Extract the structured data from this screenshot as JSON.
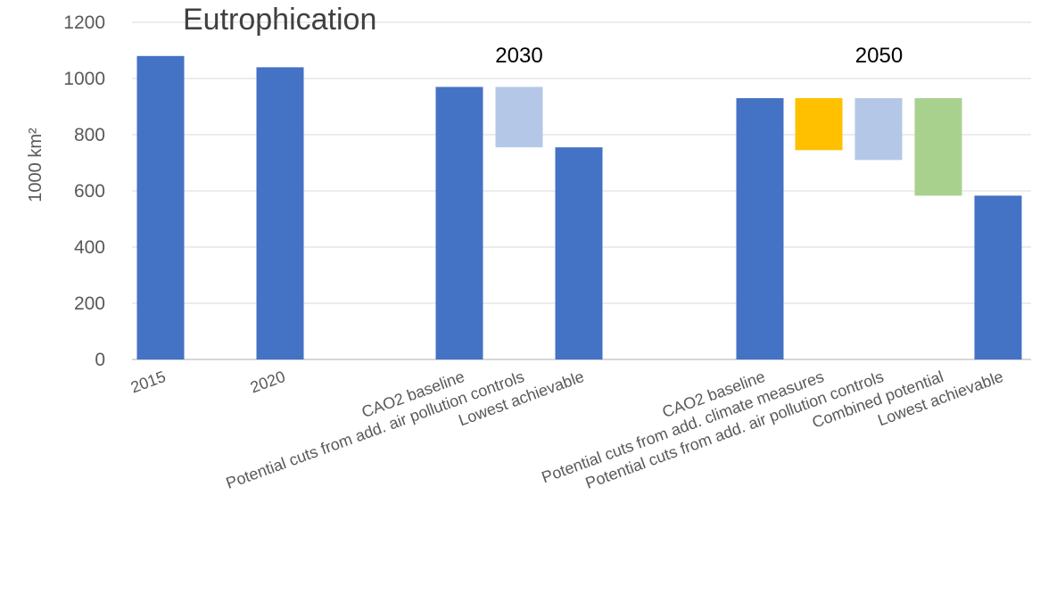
{
  "chart_data": {
    "type": "bar",
    "title": "Eutrophication",
    "ylabel": "1000 km²",
    "xlabel": "",
    "ylim": [
      0,
      1200
    ],
    "yticks": [
      0,
      200,
      400,
      600,
      800,
      1000,
      1200
    ],
    "grid": true,
    "group_labels": [
      {
        "label": "2030",
        "first": 2,
        "last": 4
      },
      {
        "label": "2050",
        "first": 5,
        "last": 9
      }
    ],
    "colors": {
      "total": "#4472c4",
      "air_pollution_cut": "#b4c7e7",
      "climate_cut": "#ffc000",
      "combined_cut": "#a9d18e"
    },
    "bars": [
      {
        "category": "2015",
        "bottom": 0,
        "top": 1080,
        "color": "#4472c4"
      },
      {
        "category": "2020",
        "bottom": 0,
        "top": 1040,
        "color": "#4472c4"
      },
      {
        "category": "CAO2 baseline",
        "bottom": 0,
        "top": 970,
        "color": "#4472c4"
      },
      {
        "category": "Potential cuts from add. air pollution controls",
        "bottom": 755,
        "top": 970,
        "color": "#b4c7e7"
      },
      {
        "category": "Lowest achievable",
        "bottom": 0,
        "top": 755,
        "color": "#4472c4"
      },
      {
        "category": "CAO2 baseline",
        "bottom": 0,
        "top": 930,
        "color": "#4472c4"
      },
      {
        "category": "Potential cuts from add. climate measures",
        "bottom": 745,
        "top": 930,
        "color": "#ffc000"
      },
      {
        "category": "Potential cuts from add. air pollution controls",
        "bottom": 710,
        "top": 930,
        "color": "#b4c7e7"
      },
      {
        "category": "Combined potential",
        "bottom": 583,
        "top": 930,
        "color": "#a9d18e"
      },
      {
        "category": "Lowest achievable",
        "bottom": 0,
        "top": 583,
        "color": "#4472c4"
      }
    ]
  }
}
